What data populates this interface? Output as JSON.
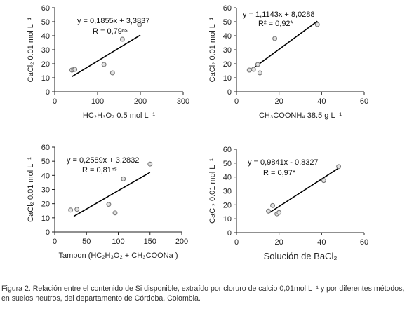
{
  "caption": "Figura 2. Relación entre el contenido de Si disponible, extraído por cloruro de calcio 0,01mol L⁻¹ y por diferentes métodos, en suelos neutros, del departamento de Córdoba, Colombia.",
  "colors": {
    "axis": "#222222",
    "point_stroke": "#777777",
    "point_fill": "#e4e4e4",
    "line": "#000000"
  },
  "chart_data": [
    {
      "type": "scatter",
      "xlabel": "HC₂H₃O₂ 0.5 mol L⁻¹",
      "ylabel": "CaCl₂ 0.01 mol L⁻¹",
      "xlim": [
        0,
        300
      ],
      "ylim": [
        0,
        60
      ],
      "xticks": [
        0,
        100,
        200,
        300
      ],
      "yticks": [
        0,
        10,
        20,
        30,
        40,
        50,
        60
      ],
      "points": [
        [
          40,
          15.5
        ],
        [
          44,
          15.8
        ],
        [
          47,
          16
        ],
        [
          115,
          19.5
        ],
        [
          135,
          13.5
        ],
        [
          158,
          37.5
        ],
        [
          198,
          48
        ]
      ],
      "fit": {
        "equation": "y = 0,1855x + 3,3837",
        "r_label": "R = 0,79ⁿˢ",
        "x_range": [
          40,
          200
        ]
      }
    },
    {
      "type": "scatter",
      "xlabel": "CH₃COONH₄ 38.5 g L⁻¹",
      "ylabel": "CaCl₂ 0.01 mol L⁻¹",
      "xlim": [
        0,
        60
      ],
      "ylim": [
        0,
        60
      ],
      "xticks": [
        0,
        20,
        40,
        60
      ],
      "yticks": [
        0,
        10,
        20,
        30,
        40,
        50,
        60
      ],
      "points": [
        [
          6,
          15.5
        ],
        [
          8,
          16
        ],
        [
          11,
          13.5
        ],
        [
          10,
          19.5
        ],
        [
          18,
          38
        ],
        [
          38,
          48
        ]
      ],
      "fit": {
        "equation": "y = 1,1143x + 8,0288",
        "r_label": "R² = 0,92*",
        "x_range": [
          6,
          38
        ]
      }
    },
    {
      "type": "scatter",
      "xlabel": "Tampon (HC₂H₃O₂ + CH₃COONa )",
      "ylabel": "CaCl₂ 0.01 mol L⁻¹",
      "xlim": [
        0,
        200
      ],
      "ylim": [
        0,
        60
      ],
      "xticks": [
        0,
        50,
        100,
        150,
        200
      ],
      "yticks": [
        0,
        10,
        20,
        30,
        40,
        50,
        60
      ],
      "points": [
        [
          25,
          15.5
        ],
        [
          35,
          16
        ],
        [
          85,
          19.5
        ],
        [
          95,
          13.5
        ],
        [
          108,
          37.5
        ],
        [
          150,
          48
        ]
      ],
      "fit": {
        "equation": "y = 0,2589x + 3,2832",
        "r_label": "R = 0,81ⁿˢ",
        "x_range": [
          30,
          150
        ]
      }
    },
    {
      "type": "scatter",
      "xlabel": "Solución de BaCl₂",
      "ylabel": "CaCl₂ 0.01 mol L⁻¹",
      "xlim": [
        0,
        60
      ],
      "ylim": [
        0,
        60
      ],
      "xticks": [
        0,
        20,
        40,
        60
      ],
      "yticks": [
        0,
        10,
        20,
        30,
        40,
        50,
        60
      ],
      "points": [
        [
          15,
          15.5
        ],
        [
          17,
          19.5
        ],
        [
          19,
          13.5
        ],
        [
          20,
          14.5
        ],
        [
          41,
          37.5
        ],
        [
          48,
          47.5
        ]
      ],
      "fit": {
        "equation": "y = 0,9841x - 0,8327",
        "r_label": "R = 0,97*",
        "x_range": [
          15,
          48
        ]
      }
    }
  ]
}
